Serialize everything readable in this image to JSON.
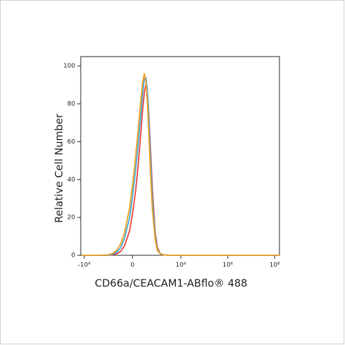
{
  "chart_data": {
    "type": "line",
    "xlabel": "CD66a/CEACAM1-ABflo® 488",
    "ylabel": "Relative Cell Number",
    "xscale": "asinh",
    "x": [
      -13000,
      -3000,
      -1000,
      -600,
      -400,
      -250,
      -150,
      -50,
      0,
      50,
      100,
      150,
      200,
      250,
      300,
      350,
      400,
      500,
      600,
      800,
      1000,
      1300,
      1800,
      3000,
      10000,
      1000000,
      160000000
    ],
    "series": [
      {
        "name": "red",
        "color": "#e8413c",
        "values": [
          0,
          0,
          0,
          0.3,
          0.8,
          2,
          5,
          13,
          22,
          33,
          47,
          62,
          76,
          86,
          90,
          87,
          78,
          55,
          35,
          12,
          4,
          1,
          0.3,
          0,
          0,
          0,
          0
        ]
      },
      {
        "name": "blue",
        "color": "#3fa7d6",
        "values": [
          0,
          0,
          0,
          0.6,
          1.5,
          4,
          9,
          20,
          31,
          44,
          58,
          72,
          85,
          93,
          94,
          88,
          76,
          50,
          30,
          10,
          3,
          1,
          0.3,
          0,
          0,
          0,
          0
        ]
      },
      {
        "name": "orange",
        "color": "#f0a020",
        "values": [
          0,
          0,
          0.2,
          1,
          2.5,
          6,
          12,
          25,
          37,
          51,
          66,
          80,
          91,
          96,
          92,
          82,
          68,
          42,
          24,
          8,
          2.5,
          0.8,
          0.2,
          0,
          0,
          0,
          0
        ]
      }
    ],
    "xlim": [
      -14000,
      160000000
    ],
    "xticks": [
      {
        "value": -10000,
        "label": "-10⁴"
      },
      0,
      {
        "value": 10000,
        "label": "10⁴"
      },
      {
        "value": 1000000,
        "label": "10⁶"
      },
      {
        "value": 100000000,
        "label": "10⁸"
      }
    ],
    "ylim": [
      0,
      105
    ],
    "yticks": [
      0,
      20,
      40,
      60,
      80,
      100
    ],
    "grid": false
  }
}
